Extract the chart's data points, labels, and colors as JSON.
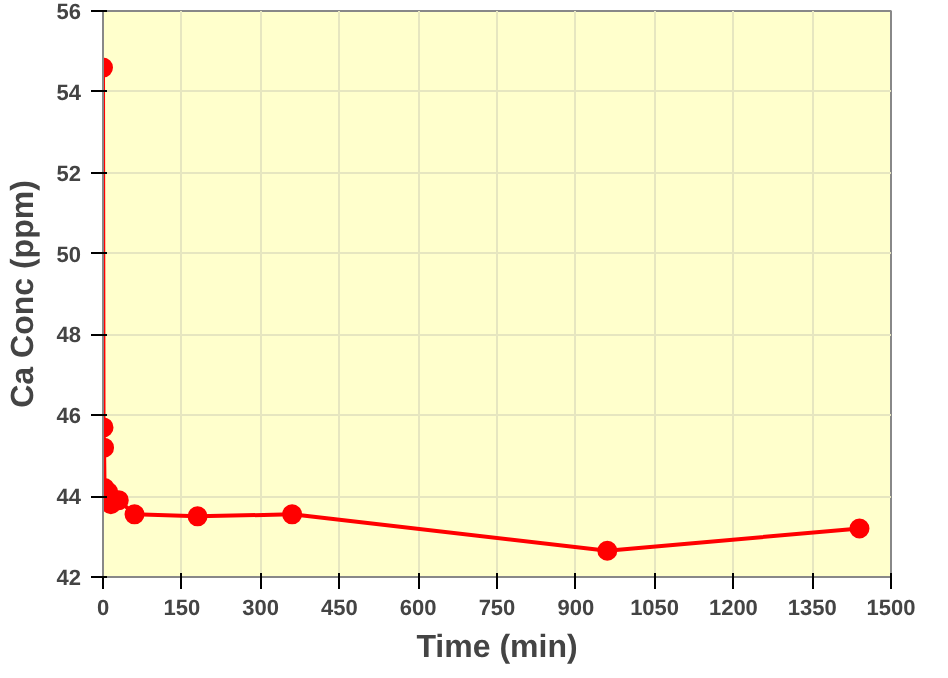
{
  "chart_data": {
    "type": "line",
    "xlabel": "Time (min)",
    "ylabel": "Ca Conc (ppm)",
    "series": [
      {
        "color": "#ff0000",
        "x": [
          0,
          1,
          2,
          3,
          5,
          10,
          15,
          30,
          60,
          180,
          360,
          960,
          1440
        ],
        "values": [
          54.6,
          45.7,
          45.2,
          44.2,
          43.9,
          44.1,
          43.8,
          43.9,
          43.55,
          43.5,
          43.55,
          42.65,
          43.2
        ]
      }
    ],
    "xlim": [
      0,
      1500
    ],
    "xticks": [
      0,
      150,
      300,
      450,
      600,
      750,
      900,
      1050,
      1200,
      1350,
      1500
    ],
    "ylim": [
      42,
      56
    ],
    "yticks": [
      42,
      44,
      46,
      48,
      50,
      52,
      54,
      56
    ],
    "grid": true,
    "marker": "circle",
    "line_style": "solid"
  }
}
